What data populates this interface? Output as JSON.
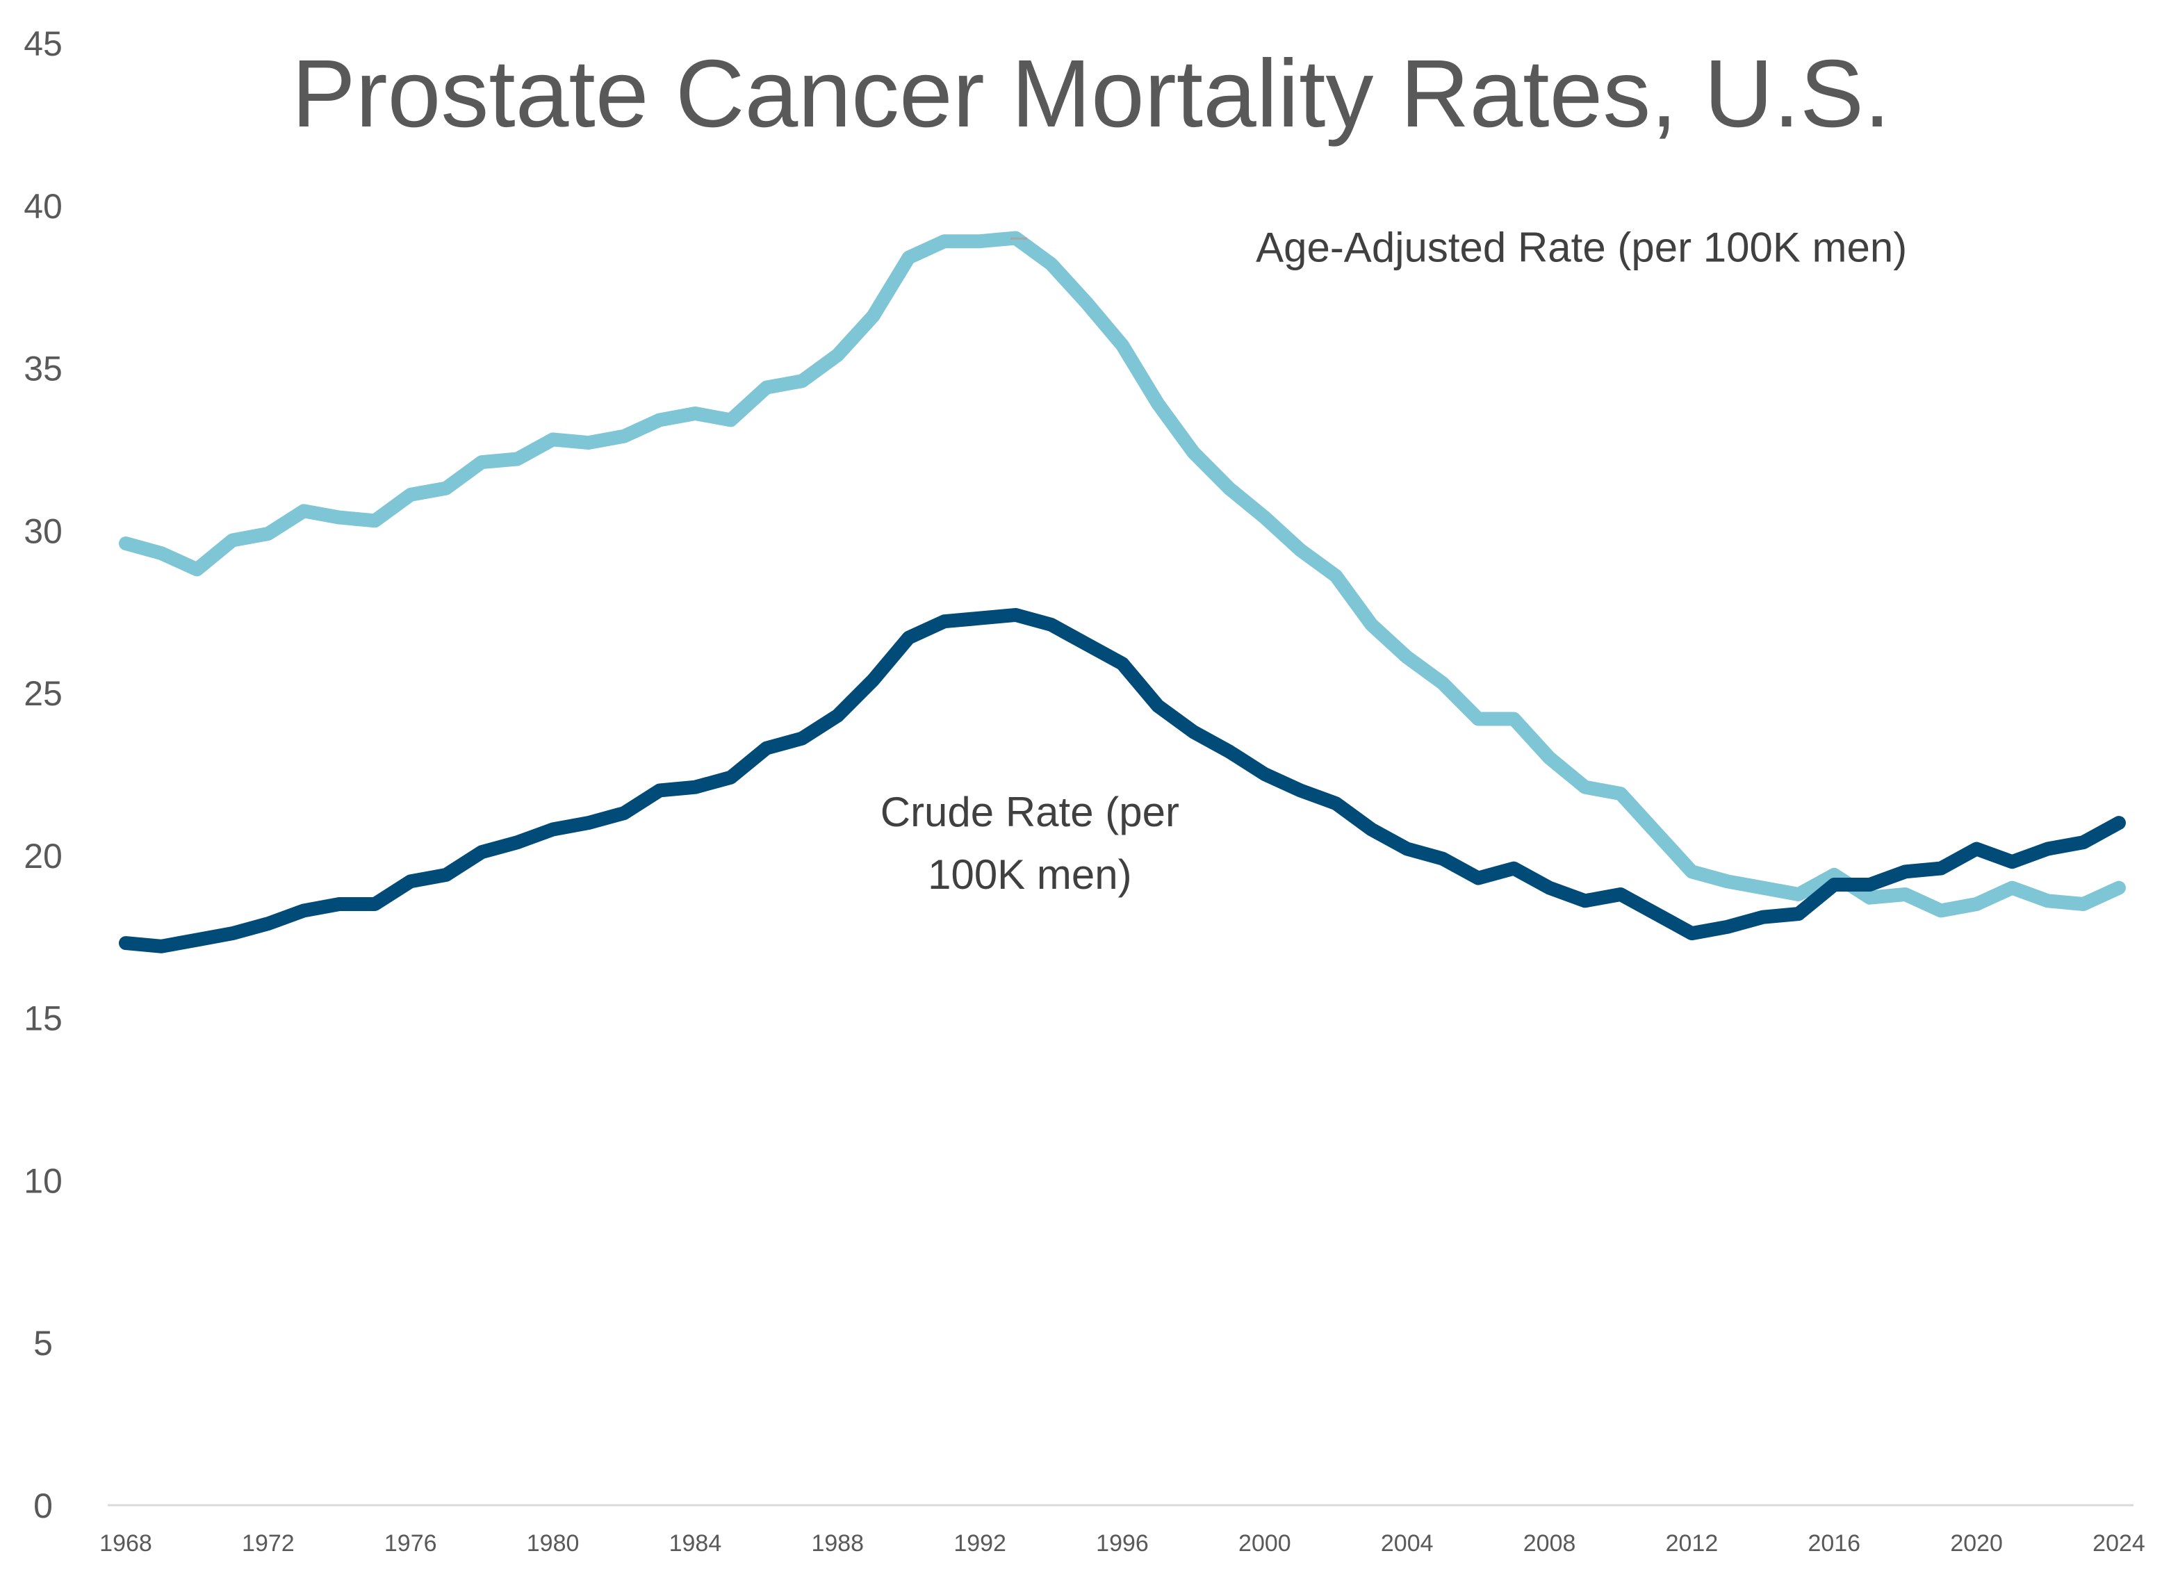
{
  "chart_data": {
    "type": "line",
    "title": "Prostate Cancer Mortality Rates, U.S.",
    "xlabel": "",
    "ylabel": "",
    "ylim": [
      0,
      45
    ],
    "yticks": [
      "0",
      "5",
      "10",
      "15",
      "20",
      "25",
      "30",
      "35",
      "40",
      "45"
    ],
    "xticks": [
      "1968",
      "1972",
      "1976",
      "1980",
      "1984",
      "1988",
      "1992",
      "1996",
      "2000",
      "2004",
      "2008",
      "2012",
      "2016",
      "2020",
      "2024"
    ],
    "xlim": [
      1968,
      2024
    ],
    "grid": false,
    "legend": "none",
    "x": [
      1968,
      1969,
      1970,
      1971,
      1972,
      1973,
      1974,
      1975,
      1976,
      1977,
      1978,
      1979,
      1980,
      1981,
      1982,
      1983,
      1984,
      1985,
      1986,
      1987,
      1988,
      1989,
      1990,
      1991,
      1992,
      1993,
      1994,
      1995,
      1996,
      1997,
      1998,
      1999,
      2000,
      2001,
      2002,
      2003,
      2004,
      2005,
      2006,
      2007,
      2008,
      2009,
      2010,
      2011,
      2012,
      2013,
      2014,
      2015,
      2016,
      2017,
      2018,
      2019,
      2020,
      2021,
      2022,
      2023,
      2024
    ],
    "series": [
      {
        "color": "#7ec5d6",
        "values": [
          29.6,
          29.3,
          28.8,
          29.7,
          29.9,
          30.6,
          30.4,
          30.3,
          31.1,
          31.3,
          32.1,
          32.2,
          32.8,
          32.7,
          32.9,
          33.4,
          33.6,
          33.4,
          34.4,
          34.6,
          35.4,
          36.6,
          38.4,
          38.9,
          38.9,
          39.0,
          38.2,
          37.0,
          35.7,
          33.9,
          32.4,
          31.3,
          30.4,
          29.4,
          28.6,
          27.1,
          26.1,
          25.3,
          24.2,
          24.2,
          23.0,
          22.1,
          21.9,
          20.7,
          19.5,
          19.2,
          19.0,
          18.8,
          19.4,
          18.7,
          18.8,
          18.3,
          18.5,
          19.0,
          18.6,
          18.5,
          19.0
        ]
      },
      {
        "color": "#004b78",
        "values": [
          17.3,
          17.2,
          17.4,
          17.6,
          17.9,
          18.3,
          18.5,
          18.5,
          19.2,
          19.4,
          20.1,
          20.4,
          20.8,
          21.0,
          21.3,
          22.0,
          22.1,
          22.4,
          23.3,
          23.6,
          24.3,
          25.4,
          26.7,
          27.2,
          27.3,
          27.4,
          27.1,
          26.5,
          25.9,
          24.6,
          23.8,
          23.2,
          22.5,
          22.0,
          21.6,
          20.8,
          20.2,
          19.9,
          19.3,
          19.6,
          19.0,
          18.6,
          18.8,
          18.2,
          17.6,
          17.8,
          18.1,
          18.2,
          19.1,
          19.1,
          19.5,
          19.6,
          20.2,
          19.8,
          20.2,
          20.4,
          21.0
        ]
      }
    ],
    "annotations": [
      {
        "text": "Age-Adjusted Rate (per 100K men)",
        "x": 2008.9,
        "y": 38.7
      },
      {
        "lines": [
          "Crude Rate (per",
          "100K men)"
        ],
        "x": 1993.4,
        "y": 19.4
      }
    ]
  }
}
